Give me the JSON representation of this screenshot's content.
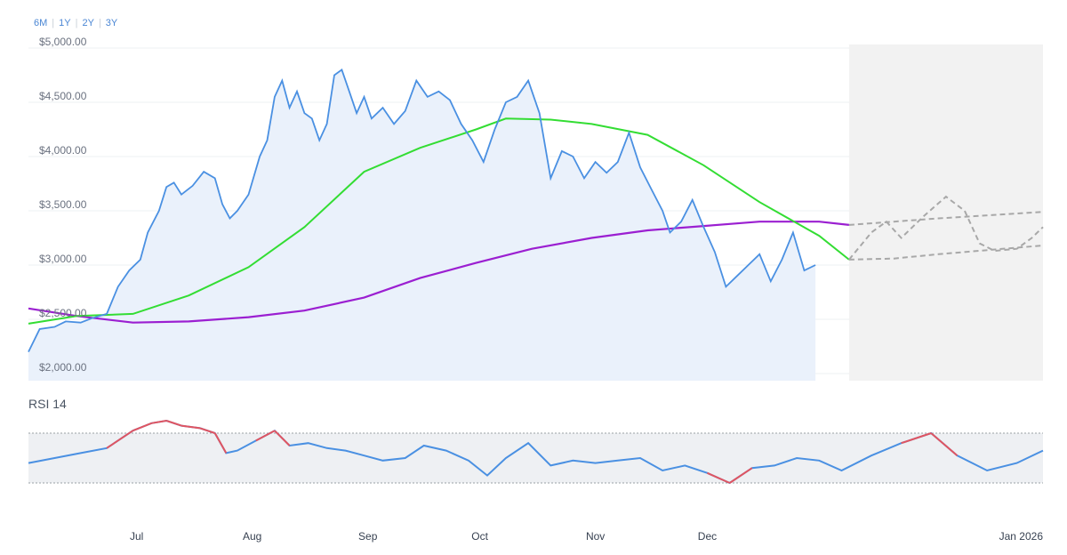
{
  "range_buttons": [
    "6M",
    "1Y",
    "2Y",
    "3Y"
  ],
  "colors": {
    "price": "#4a90e2",
    "price_fill": "#eaf1fb",
    "sma50": "#33dd33",
    "sma200": "#9b1fd1",
    "forecast": "#a8a8a8",
    "forecast_bg": "#f2f2f2",
    "rsi": "#4a90e2",
    "rsi_extreme": "#e05561",
    "rsi_band": "#eef0f3"
  },
  "chart_data": [
    {
      "type": "line",
      "title": "",
      "x_axis": {
        "min": "2025-06-02",
        "max": "2026-01-01",
        "tick_labels": [
          "Jul",
          "Aug",
          "Sep",
          "Oct",
          "Nov",
          "Dec",
          "Jan 2026"
        ],
        "tick_dates": [
          "2025-07-01",
          "2025-08-01",
          "2025-09-01",
          "2025-10-01",
          "2025-11-01",
          "2025-12-01",
          "2026-01-01"
        ]
      },
      "y_axis": {
        "min": 2000,
        "max": 5000,
        "tick_labels": [
          "$2,000.00",
          "$2,500.00",
          "$3,000.00",
          "$3,500.00",
          "$4,000.00",
          "$4,500.00",
          "$5,000.00"
        ],
        "tick_values": [
          2000,
          2500,
          3000,
          3500,
          4000,
          4500,
          5000
        ]
      },
      "grid": true,
      "series": [
        {
          "key": "price",
          "points": [
            [
              "2025-06-02",
              2200
            ],
            [
              "2025-06-05",
              2410
            ],
            [
              "2025-06-09",
              2430
            ],
            [
              "2025-06-12",
              2480
            ],
            [
              "2025-06-16",
              2470
            ],
            [
              "2025-06-19",
              2510
            ],
            [
              "2025-06-23",
              2550
            ],
            [
              "2025-06-26",
              2800
            ],
            [
              "2025-06-29",
              2950
            ],
            [
              "2025-07-02",
              3050
            ],
            [
              "2025-07-04",
              3300
            ],
            [
              "2025-07-07",
              3500
            ],
            [
              "2025-07-09",
              3720
            ],
            [
              "2025-07-11",
              3760
            ],
            [
              "2025-07-13",
              3650
            ],
            [
              "2025-07-16",
              3730
            ],
            [
              "2025-07-19",
              3860
            ],
            [
              "2025-07-22",
              3800
            ],
            [
              "2025-07-24",
              3560
            ],
            [
              "2025-07-26",
              3430
            ],
            [
              "2025-07-28",
              3500
            ],
            [
              "2025-07-31",
              3650
            ],
            [
              "2025-08-03",
              4000
            ],
            [
              "2025-08-05",
              4150
            ],
            [
              "2025-08-07",
              4550
            ],
            [
              "2025-08-09",
              4700
            ],
            [
              "2025-08-11",
              4450
            ],
            [
              "2025-08-13",
              4600
            ],
            [
              "2025-08-15",
              4400
            ],
            [
              "2025-08-17",
              4350
            ],
            [
              "2025-08-19",
              4150
            ],
            [
              "2025-08-21",
              4300
            ],
            [
              "2025-08-23",
              4750
            ],
            [
              "2025-08-25",
              4800
            ],
            [
              "2025-08-27",
              4600
            ],
            [
              "2025-08-29",
              4400
            ],
            [
              "2025-08-31",
              4550
            ],
            [
              "2025-09-02",
              4350
            ],
            [
              "2025-09-05",
              4450
            ],
            [
              "2025-09-08",
              4300
            ],
            [
              "2025-09-11",
              4420
            ],
            [
              "2025-09-14",
              4700
            ],
            [
              "2025-09-17",
              4550
            ],
            [
              "2025-09-20",
              4600
            ],
            [
              "2025-09-23",
              4520
            ],
            [
              "2025-09-26",
              4300
            ],
            [
              "2025-09-29",
              4150
            ],
            [
              "2025-10-02",
              3950
            ],
            [
              "2025-10-05",
              4250
            ],
            [
              "2025-10-08",
              4500
            ],
            [
              "2025-10-11",
              4550
            ],
            [
              "2025-10-14",
              4700
            ],
            [
              "2025-10-17",
              4400
            ],
            [
              "2025-10-20",
              3800
            ],
            [
              "2025-10-23",
              4050
            ],
            [
              "2025-10-26",
              4000
            ],
            [
              "2025-10-29",
              3800
            ],
            [
              "2025-11-01",
              3950
            ],
            [
              "2025-11-04",
              3850
            ],
            [
              "2025-11-07",
              3950
            ],
            [
              "2025-11-10",
              4220
            ],
            [
              "2025-11-13",
              3900
            ],
            [
              "2025-11-16",
              3700
            ],
            [
              "2025-11-19",
              3500
            ],
            [
              "2025-11-21",
              3300
            ],
            [
              "2025-11-24",
              3400
            ],
            [
              "2025-11-27",
              3600
            ],
            [
              "2025-11-30",
              3350
            ],
            [
              "2025-12-03",
              3120
            ],
            [
              "2025-12-06",
              2800
            ],
            [
              "2025-12-09",
              2900
            ],
            [
              "2025-12-12",
              3000
            ],
            [
              "2025-12-15",
              3100
            ],
            [
              "2025-12-18",
              2850
            ],
            [
              "2025-12-21",
              3050
            ],
            [
              "2025-12-24",
              3300
            ],
            [
              "2025-12-27",
              2950
            ],
            [
              "2025-12-30",
              3000
            ]
          ]
        },
        {
          "key": "sma50",
          "points": [
            [
              "2025-06-02",
              2460
            ],
            [
              "2025-06-15",
              2530
            ],
            [
              "2025-06-30",
              2550
            ],
            [
              "2025-07-15",
              2720
            ],
            [
              "2025-07-31",
              2980
            ],
            [
              "2025-08-15",
              3350
            ],
            [
              "2025-08-31",
              3860
            ],
            [
              "2025-09-15",
              4080
            ],
            [
              "2025-09-30",
              4250
            ],
            [
              "2025-10-08",
              4350
            ],
            [
              "2025-10-20",
              4340
            ],
            [
              "2025-10-31",
              4300
            ],
            [
              "2025-11-15",
              4200
            ],
            [
              "2025-11-30",
              3920
            ],
            [
              "2025-12-15",
              3580
            ],
            [
              "2025-12-31",
              3270
            ],
            [
              "2026-01-08",
              3050
            ]
          ]
        },
        {
          "key": "sma200",
          "points": [
            [
              "2025-06-02",
              2600
            ],
            [
              "2025-06-15",
              2530
            ],
            [
              "2025-06-30",
              2470
            ],
            [
              "2025-07-15",
              2480
            ],
            [
              "2025-07-31",
              2520
            ],
            [
              "2025-08-15",
              2580
            ],
            [
              "2025-08-31",
              2700
            ],
            [
              "2025-09-15",
              2880
            ],
            [
              "2025-09-30",
              3020
            ],
            [
              "2025-10-15",
              3150
            ],
            [
              "2025-10-31",
              3250
            ],
            [
              "2025-11-15",
              3320
            ],
            [
              "2025-11-30",
              3360
            ],
            [
              "2025-12-15",
              3400
            ],
            [
              "2025-12-31",
              3400
            ],
            [
              "2026-01-08",
              3370
            ]
          ]
        },
        {
          "key": "forecast_upper",
          "points": [
            [
              "2026-01-08",
              3370
            ],
            [
              "2026-01-20",
              3400
            ],
            [
              "2026-02-01",
              3430
            ],
            [
              "2026-02-15",
              3460
            ],
            [
              "2026-03-01",
              3490
            ]
          ]
        },
        {
          "key": "forecast_lower",
          "points": [
            [
              "2026-01-08",
              3050
            ],
            [
              "2026-01-20",
              3060
            ],
            [
              "2026-02-01",
              3100
            ],
            [
              "2026-02-15",
              3140
            ],
            [
              "2026-03-01",
              3180
            ]
          ]
        },
        {
          "key": "forecast_path",
          "points": [
            [
              "2026-01-08",
              3050
            ],
            [
              "2026-01-14",
              3300
            ],
            [
              "2026-01-18",
              3400
            ],
            [
              "2026-01-22",
              3250
            ],
            [
              "2026-01-28",
              3450
            ],
            [
              "2026-02-03",
              3630
            ],
            [
              "2026-02-08",
              3500
            ],
            [
              "2026-02-12",
              3200
            ],
            [
              "2026-02-16",
              3130
            ],
            [
              "2026-02-22",
              3150
            ],
            [
              "2026-02-26",
              3250
            ],
            [
              "2026-03-01",
              3350
            ]
          ]
        }
      ]
    },
    {
      "type": "line",
      "title": "RSI 14",
      "y_axis": {
        "min": 0,
        "max": 100,
        "overbought": 70,
        "oversold": 30
      },
      "series": [
        {
          "key": "rsi",
          "points": [
            [
              "2025-06-02",
              46
            ],
            [
              "2025-06-09",
              50
            ],
            [
              "2025-06-16",
              54
            ],
            [
              "2025-06-23",
              58
            ],
            [
              "2025-06-30",
              72
            ],
            [
              "2025-07-05",
              78
            ],
            [
              "2025-07-09",
              80
            ],
            [
              "2025-07-13",
              76
            ],
            [
              "2025-07-18",
              74
            ],
            [
              "2025-07-22",
              70
            ],
            [
              "2025-07-25",
              54
            ],
            [
              "2025-07-28",
              56
            ],
            [
              "2025-08-02",
              64
            ],
            [
              "2025-08-07",
              72
            ],
            [
              "2025-08-11",
              60
            ],
            [
              "2025-08-16",
              62
            ],
            [
              "2025-08-21",
              58
            ],
            [
              "2025-08-26",
              56
            ],
            [
              "2025-08-31",
              52
            ],
            [
              "2025-09-05",
              48
            ],
            [
              "2025-09-11",
              50
            ],
            [
              "2025-09-16",
              60
            ],
            [
              "2025-09-22",
              56
            ],
            [
              "2025-09-28",
              48
            ],
            [
              "2025-10-03",
              36
            ],
            [
              "2025-10-08",
              50
            ],
            [
              "2025-10-14",
              62
            ],
            [
              "2025-10-20",
              44
            ],
            [
              "2025-10-26",
              48
            ],
            [
              "2025-11-01",
              46
            ],
            [
              "2025-11-07",
              48
            ],
            [
              "2025-11-13",
              50
            ],
            [
              "2025-11-19",
              40
            ],
            [
              "2025-11-25",
              44
            ],
            [
              "2025-12-01",
              38
            ],
            [
              "2025-12-07",
              30
            ],
            [
              "2025-12-13",
              42
            ],
            [
              "2025-12-19",
              44
            ],
            [
              "2025-12-25",
              50
            ],
            [
              "2025-12-31",
              48
            ],
            [
              "2026-01-06",
              40
            ],
            [
              "2026-01-14",
              52
            ],
            [
              "2026-01-22",
              62
            ],
            [
              "2026-01-30",
              70
            ],
            [
              "2026-02-06",
              52
            ],
            [
              "2026-02-14",
              40
            ],
            [
              "2026-02-22",
              46
            ],
            [
              "2026-03-01",
              56
            ]
          ]
        }
      ]
    }
  ]
}
